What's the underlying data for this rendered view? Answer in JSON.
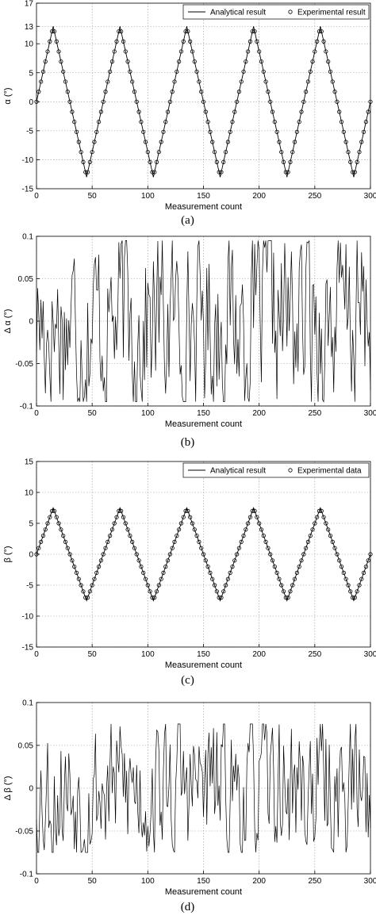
{
  "chart_data": [
    {
      "id": "a",
      "type": "line",
      "caption": "(a)",
      "xlabel": "Measurement count",
      "ylabel": "α (°)",
      "xlim": [
        0,
        300
      ],
      "ylim": [
        -15,
        17
      ],
      "xticks": [
        "0",
        "50",
        "100",
        "150",
        "200",
        "250",
        "300"
      ],
      "yticks": [
        "-15",
        "-10",
        "-5",
        "0",
        "5",
        "10",
        "13",
        "17"
      ],
      "ytick_values": [
        -15,
        -10,
        -5,
        0,
        5,
        10,
        13,
        17
      ],
      "grid": true,
      "legend_position": "top-right",
      "series": [
        {
          "name": "Analytical result",
          "style": "line",
          "kind": "triangle",
          "amplitude": 13,
          "period": 60,
          "step": 1
        },
        {
          "name": "Experimental result",
          "style": "circle",
          "kind": "triangle",
          "amplitude": 13,
          "period": 60,
          "step": 2
        }
      ]
    },
    {
      "id": "b",
      "type": "line",
      "caption": "(b)",
      "xlabel": "Measurement count",
      "ylabel": "Δ α (°)",
      "xlim": [
        0,
        300
      ],
      "ylim": [
        -0.1,
        0.1
      ],
      "xticks": [
        "0",
        "50",
        "100",
        "150",
        "200",
        "250",
        "300"
      ],
      "yticks": [
        "-0.1",
        "-0.05",
        "0",
        "0.05",
        "0.1"
      ],
      "ytick_values": [
        -0.1,
        -0.05,
        0,
        0.05,
        0.1
      ],
      "grid": true,
      "series": [
        {
          "style": "line",
          "kind": "noise",
          "amplitude": 0.095,
          "seed": 17
        }
      ]
    },
    {
      "id": "c",
      "type": "line",
      "caption": "(c)",
      "xlabel": "Measurement count",
      "ylabel": "β (°)",
      "xlim": [
        0,
        300
      ],
      "ylim": [
        -15,
        15
      ],
      "xticks": [
        "0",
        "50",
        "100",
        "150",
        "200",
        "250",
        "300"
      ],
      "yticks": [
        "-15",
        "-10",
        "-5",
        "0",
        "5",
        "10",
        "15"
      ],
      "ytick_values": [
        -15,
        -10,
        -5,
        0,
        5,
        10,
        15
      ],
      "grid": true,
      "legend_position": "top-right",
      "series": [
        {
          "name": "Analytical result",
          "style": "line",
          "kind": "triangle",
          "amplitude": 7.5,
          "period": 60,
          "step": 1
        },
        {
          "name": "Experimental data",
          "style": "circle",
          "kind": "triangle",
          "amplitude": 7.5,
          "period": 60,
          "step": 2
        }
      ]
    },
    {
      "id": "d",
      "type": "line",
      "caption": "(d)",
      "xlabel": "Measurement count",
      "ylabel": "Δ β (°)",
      "xlim": [
        0,
        300
      ],
      "ylim": [
        -0.1,
        0.1
      ],
      "xticks": [
        "0",
        "50",
        "100",
        "150",
        "200",
        "250",
        "300"
      ],
      "yticks": [
        "-0.1",
        "-0.05",
        "0",
        "0.05",
        "0.1"
      ],
      "ytick_values": [
        -0.1,
        -0.05,
        0,
        0.05,
        0.1
      ],
      "grid": true,
      "series": [
        {
          "style": "line",
          "kind": "noise",
          "amplitude": 0.075,
          "seed": 53
        }
      ]
    }
  ]
}
